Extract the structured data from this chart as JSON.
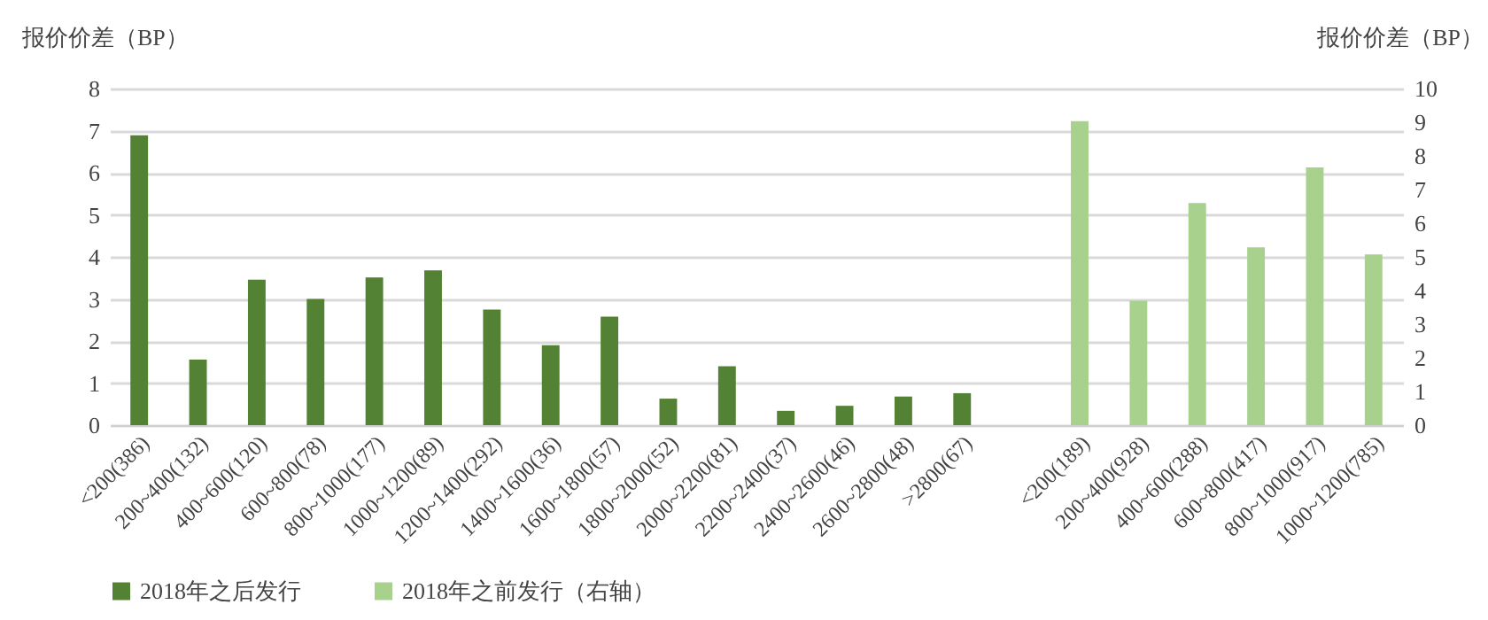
{
  "chart_data": {
    "type": "bar",
    "ylabel": "报价价差（BP）",
    "y2label": "报价价差（BP）",
    "categories": [
      "<200(386)",
      "200~400(132)",
      "400~600(120)",
      "600~800(78)",
      "800~1000(177)",
      "1000~1200(89)",
      "1200~1400(292)",
      "1400~1600(36)",
      "1600~1800(57)",
      "1800~2000(52)",
      "2000~2200(81)",
      "2200~2400(37)",
      "2400~2600(46)",
      "2600~2800(48)",
      ">2800(67)",
      null,
      "<200(189)",
      "200~400(928)",
      "400~600(288)",
      "600~800(417)",
      "800~1000(917)",
      "1000~1200(785)"
    ],
    "series": [
      {
        "name": "2018年之后发行",
        "color": "#548235",
        "values": [
          6.89,
          1.56,
          3.46,
          3.0,
          3.51,
          3.68,
          2.75,
          1.9,
          2.58,
          0.63,
          1.4,
          0.34,
          0.46,
          0.68,
          0.76,
          null,
          null,
          null,
          null,
          null,
          null,
          null
        ]
      },
      {
        "name": "2018年之前发行（右轴）",
        "color": "#a9d18e",
        "axis": "y2",
        "values": [
          null,
          null,
          null,
          null,
          null,
          null,
          null,
          null,
          null,
          null,
          null,
          null,
          null,
          null,
          null,
          null,
          9.03,
          3.7,
          6.6,
          5.28,
          7.66,
          5.07
        ]
      }
    ],
    "ylim": [
      0,
      8
    ],
    "yticks": [
      0,
      1,
      2,
      3,
      4,
      5,
      6,
      7,
      8
    ],
    "y2lim": [
      0,
      10
    ],
    "y2ticks": [
      0,
      1,
      2,
      3,
      4,
      5,
      6,
      7,
      8,
      9,
      10
    ],
    "grid": "y",
    "legend": "bottom"
  }
}
